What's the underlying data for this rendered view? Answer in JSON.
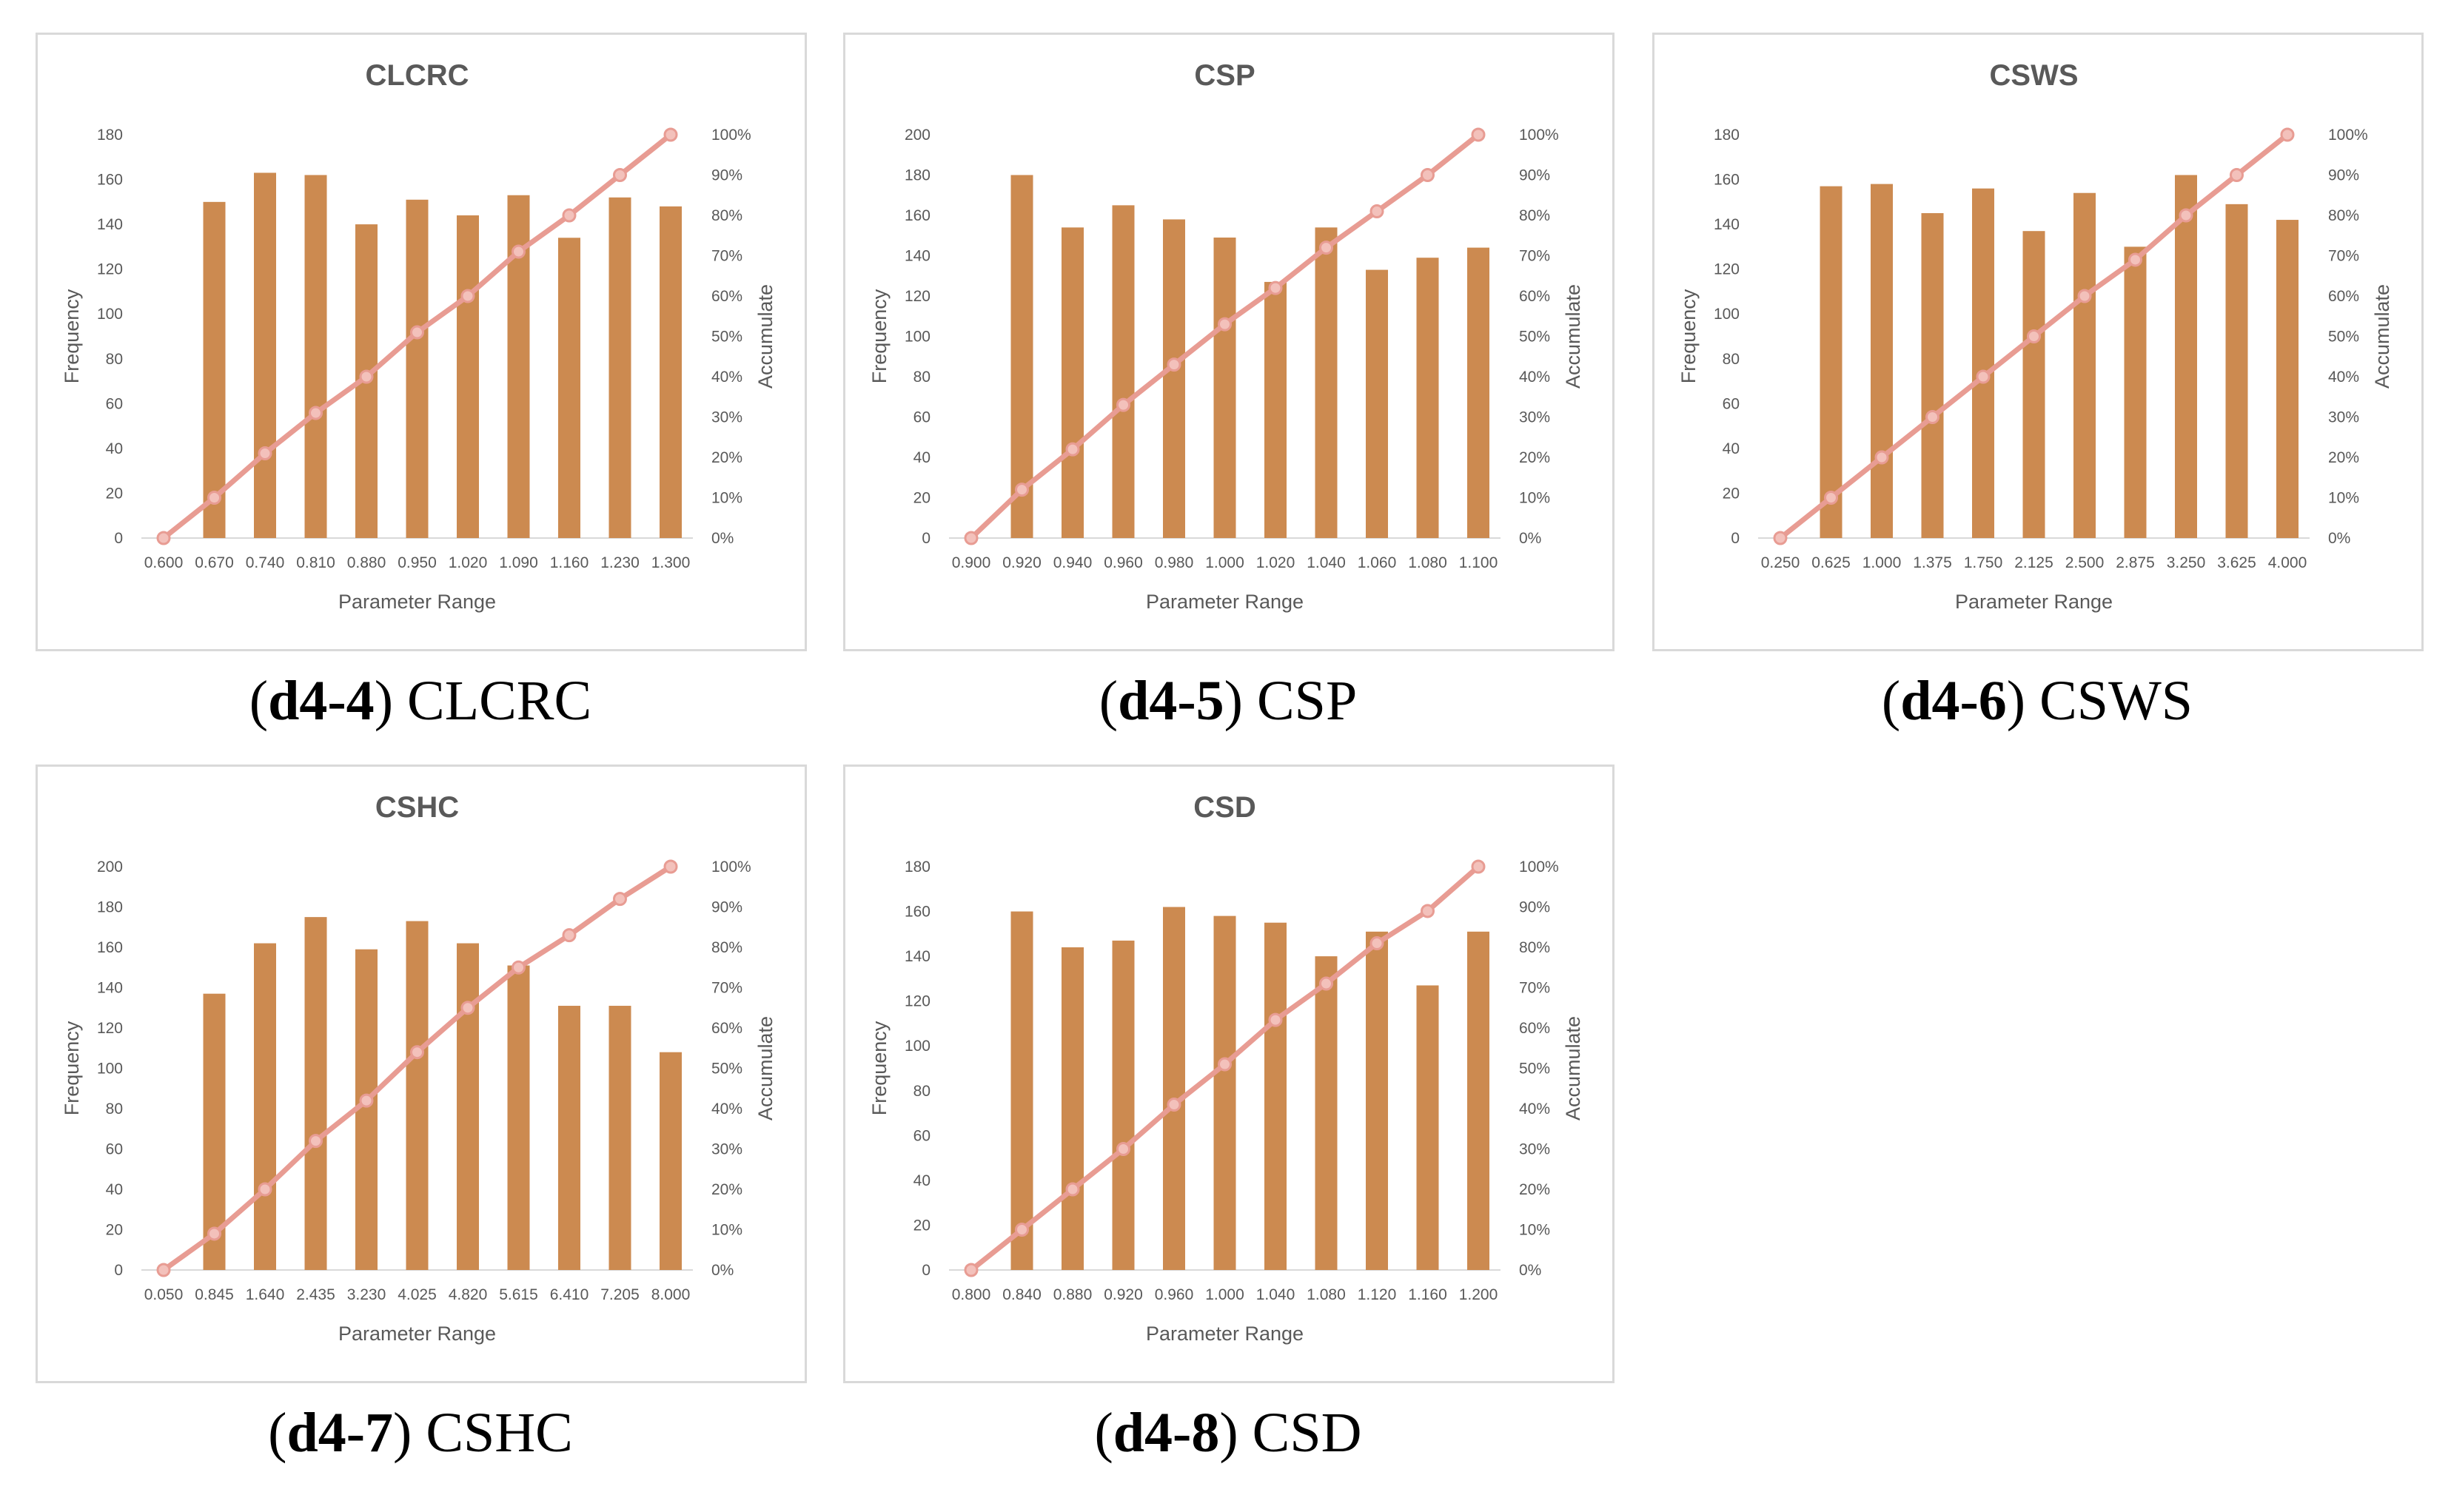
{
  "colors": {
    "bar": "#cc8a50",
    "line": "#e89c93",
    "marker": "#f3c1bb",
    "axis": "#d9d9d9",
    "text": "#595959"
  },
  "chart_data": [
    {
      "id": "d4-4",
      "caption_bold": "d4-4",
      "caption_name": "CLCRC",
      "type": "bar",
      "title": "CLCRC",
      "xlabel": "Parameter Range",
      "ylabel": "Frequency",
      "y2label": "Accumulate",
      "categories": [
        "0.600",
        "0.670",
        "0.740",
        "0.810",
        "0.880",
        "0.950",
        "1.020",
        "1.090",
        "1.160",
        "1.230",
        "1.300"
      ],
      "values": [
        0,
        150,
        163,
        162,
        140,
        151,
        144,
        153,
        134,
        152,
        148
      ],
      "accumulate": [
        0,
        10,
        21,
        31,
        40,
        51,
        60,
        71,
        80,
        90,
        100
      ],
      "ylim": [
        0,
        180
      ],
      "ystep": 20,
      "y2ticks": [
        "0%",
        "10%",
        "20%",
        "30%",
        "40%",
        "50%",
        "60%",
        "70%",
        "80%",
        "90%",
        "100%"
      ]
    },
    {
      "id": "d4-5",
      "caption_bold": "d4-5",
      "caption_name": "CSP",
      "type": "bar",
      "title": "CSP",
      "xlabel": "Parameter Range",
      "ylabel": "Frequency",
      "y2label": "Accumulate",
      "categories": [
        "0.900",
        "0.920",
        "0.940",
        "0.960",
        "0.980",
        "1.000",
        "1.020",
        "1.040",
        "1.060",
        "1.080",
        "1.100"
      ],
      "values": [
        0,
        180,
        154,
        165,
        158,
        149,
        127,
        154,
        133,
        139,
        144
      ],
      "accumulate": [
        0,
        12,
        22,
        33,
        43,
        53,
        62,
        72,
        81,
        90,
        100
      ],
      "ylim": [
        0,
        200
      ],
      "ystep": 20,
      "y2ticks": [
        "0%",
        "10%",
        "20%",
        "30%",
        "40%",
        "50%",
        "60%",
        "70%",
        "80%",
        "90%",
        "100%"
      ]
    },
    {
      "id": "d4-6",
      "caption_bold": "d4-6",
      "caption_name": "CSWS",
      "type": "bar",
      "title": "CSWS",
      "xlabel": "Parameter Range",
      "ylabel": "Frequency",
      "y2label": "Accumulate",
      "categories": [
        "0.250",
        "0.625",
        "1.000",
        "1.375",
        "1.750",
        "2.125",
        "2.500",
        "2.875",
        "3.250",
        "3.625",
        "4.000"
      ],
      "values": [
        0,
        157,
        158,
        145,
        156,
        137,
        154,
        130,
        162,
        149,
        142
      ],
      "accumulate": [
        0,
        10,
        20,
        30,
        40,
        50,
        60,
        69,
        80,
        90,
        100
      ],
      "ylim": [
        0,
        180
      ],
      "ystep": 20,
      "y2ticks": [
        "0%",
        "10%",
        "20%",
        "30%",
        "40%",
        "50%",
        "60%",
        "70%",
        "80%",
        "90%",
        "100%"
      ]
    },
    {
      "id": "d4-7",
      "caption_bold": "d4-7",
      "caption_name": "CSHC",
      "type": "bar",
      "title": "CSHC",
      "xlabel": "Parameter Range",
      "ylabel": "Frequency",
      "y2label": "Accumulate",
      "categories": [
        "0.050",
        "0.845",
        "1.640",
        "2.435",
        "3.230",
        "4.025",
        "4.820",
        "5.615",
        "6.410",
        "7.205",
        "8.000"
      ],
      "values": [
        0,
        137,
        162,
        175,
        159,
        173,
        162,
        151,
        131,
        131,
        108
      ],
      "accumulate": [
        0,
        9,
        20,
        32,
        42,
        54,
        65,
        75,
        83,
        92,
        100
      ],
      "ylim": [
        0,
        200
      ],
      "ystep": 20,
      "y2ticks": [
        "0%",
        "10%",
        "20%",
        "30%",
        "40%",
        "50%",
        "60%",
        "70%",
        "80%",
        "90%",
        "100%"
      ]
    },
    {
      "id": "d4-8",
      "caption_bold": "d4-8",
      "caption_name": "CSD",
      "type": "bar",
      "title": "CSD",
      "xlabel": "Parameter Range",
      "ylabel": "Frequency",
      "y2label": "Accumulate",
      "categories": [
        "0.800",
        "0.840",
        "0.880",
        "0.920",
        "0.960",
        "1.000",
        "1.040",
        "1.080",
        "1.120",
        "1.160",
        "1.200"
      ],
      "values": [
        0,
        160,
        144,
        147,
        162,
        158,
        155,
        140,
        151,
        127,
        151
      ],
      "accumulate": [
        0,
        10,
        20,
        30,
        41,
        51,
        62,
        71,
        81,
        89,
        100
      ],
      "ylim": [
        0,
        180
      ],
      "ystep": 20,
      "y2ticks": [
        "0%",
        "10%",
        "20%",
        "30%",
        "40%",
        "50%",
        "60%",
        "70%",
        "80%",
        "90%",
        "100%"
      ]
    }
  ]
}
